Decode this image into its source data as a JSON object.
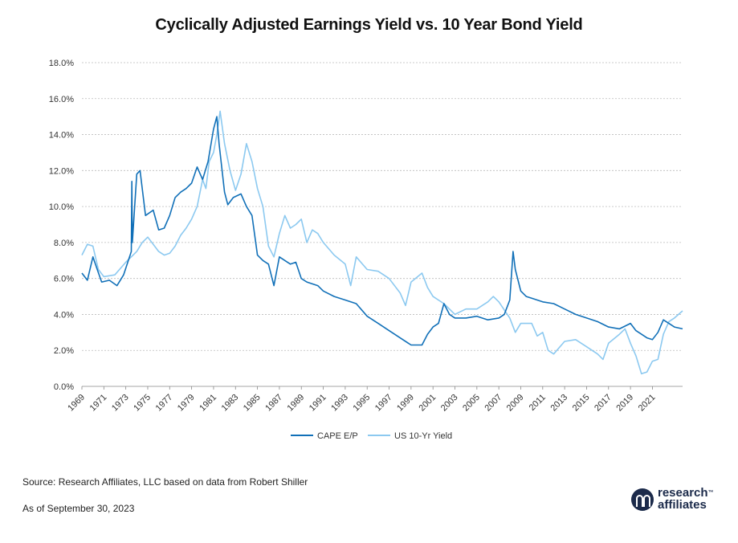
{
  "title": "Cyclically Adjusted Earnings Yield vs. 10 Year Bond Yield",
  "footer": {
    "source": "Source: Research Affiliates, LLC based on data from Robert Shiller",
    "as_of": "As of September 30, 2023"
  },
  "logo": {
    "line1": "research",
    "line2": "affiliates",
    "tm": "™"
  },
  "colors": {
    "cape": "#1170b8",
    "bond": "#8cc9f0",
    "grid": "#bbbbbb"
  },
  "chart_data": {
    "type": "line",
    "title": "Cyclically Adjusted Earnings Yield vs. 10 Year Bond Yield",
    "xlabel": "",
    "ylabel": "",
    "xlim": [
      1969,
      2023.75
    ],
    "ylim": [
      0,
      18
    ],
    "y_ticks": [
      "0.0%",
      "2.0%",
      "4.0%",
      "6.0%",
      "8.0%",
      "10.0%",
      "12.0%",
      "14.0%",
      "16.0%",
      "18.0%"
    ],
    "x_ticks": [
      "1969",
      "1971",
      "1973",
      "1975",
      "1977",
      "1979",
      "1981",
      "1983",
      "1985",
      "1987",
      "1989",
      "1991",
      "1993",
      "1995",
      "1997",
      "1999",
      "2001",
      "2003",
      "2005",
      "2007",
      "2009",
      "2011",
      "2013",
      "2015",
      "2017",
      "2019",
      "2021"
    ],
    "grid": true,
    "legend_position": "bottom-center",
    "series": [
      {
        "name": "CAPE E/P",
        "x": [
          1969,
          1969.5,
          1970,
          1970.4,
          1970.8,
          1971.5,
          1972.2,
          1972.8,
          1973.5,
          1973.55,
          1973.6,
          1974,
          1974.3,
          1974.8,
          1975.5,
          1976,
          1976.5,
          1977,
          1977.5,
          1978,
          1978.5,
          1979,
          1979.5,
          1980,
          1980.5,
          1981,
          1981.3,
          1981.5,
          1982,
          1982.3,
          1982.8,
          1983.5,
          1984,
          1984.5,
          1985,
          1985.5,
          1986,
          1986.5,
          1987,
          1987.5,
          1988,
          1988.5,
          1989,
          1989.5,
          1990,
          1990.5,
          1991,
          1992,
          1993,
          1994,
          1995,
          1996,
          1997,
          1998,
          1999,
          2000,
          2000.5,
          2001,
          2001.5,
          2002,
          2002.5,
          2003,
          2004,
          2005,
          2006,
          2007,
          2007.5,
          2008,
          2008.3,
          2008.5,
          2009,
          2009.5,
          2010,
          2011,
          2012,
          2013,
          2014,
          2015,
          2016,
          2017,
          2018,
          2019,
          2019.5,
          2020,
          2020.5,
          2021,
          2021.5,
          2022,
          2022.5,
          2023,
          2023.75
        ],
        "y": [
          6.3,
          5.9,
          7.2,
          6.5,
          5.8,
          5.9,
          5.6,
          6.2,
          7.5,
          11.4,
          8.0,
          11.8,
          12.0,
          9.5,
          9.8,
          8.7,
          8.8,
          9.5,
          10.5,
          10.8,
          11.0,
          11.3,
          12.2,
          11.5,
          12.5,
          14.3,
          15.0,
          13.5,
          10.8,
          10.1,
          10.5,
          10.7,
          10.0,
          9.5,
          7.3,
          7.0,
          6.8,
          5.6,
          7.2,
          7.0,
          6.8,
          6.9,
          6.0,
          5.8,
          5.7,
          5.6,
          5.3,
          5.0,
          4.8,
          4.6,
          3.9,
          3.5,
          3.1,
          2.7,
          2.3,
          2.3,
          2.9,
          3.3,
          3.5,
          4.6,
          4.0,
          3.8,
          3.8,
          3.9,
          3.7,
          3.8,
          4.0,
          4.8,
          7.5,
          6.5,
          5.3,
          5.0,
          4.9,
          4.7,
          4.6,
          4.3,
          4.0,
          3.8,
          3.6,
          3.3,
          3.2,
          3.5,
          3.1,
          2.9,
          2.7,
          2.6,
          3.0,
          3.7,
          3.5,
          3.3,
          3.2
        ]
      },
      {
        "name": "US 10-Yr Yield",
        "x": [
          1969,
          1969.5,
          1970,
          1970.5,
          1971,
          1972,
          1973,
          1974,
          1974.5,
          1975,
          1975.5,
          1976,
          1976.5,
          1977,
          1977.5,
          1978,
          1978.5,
          1979,
          1979.5,
          1980,
          1980.3,
          1980.6,
          1981,
          1981.3,
          1981.6,
          1982,
          1982.5,
          1983,
          1983.5,
          1984,
          1984.5,
          1985,
          1985.5,
          1986,
          1986.5,
          1987,
          1987.5,
          1988,
          1988.5,
          1989,
          1989.5,
          1990,
          1990.5,
          1991,
          1992,
          1993,
          1993.5,
          1994,
          1995,
          1996,
          1997,
          1998,
          1998.5,
          1999,
          2000,
          2000.5,
          2001,
          2002,
          2003,
          2004,
          2005,
          2006,
          2006.5,
          2007,
          2008,
          2008.5,
          2009,
          2010,
          2010.5,
          2011,
          2011.5,
          2012,
          2013,
          2014,
          2015,
          2016,
          2016.5,
          2017,
          2018,
          2018.5,
          2019,
          2019.5,
          2020,
          2020.5,
          2021,
          2021.5,
          2022,
          2022.5,
          2023,
          2023.75
        ],
        "y": [
          7.3,
          7.9,
          7.8,
          6.5,
          6.1,
          6.2,
          6.9,
          7.5,
          8.0,
          8.3,
          7.9,
          7.5,
          7.3,
          7.4,
          7.8,
          8.4,
          8.8,
          9.3,
          10.0,
          11.5,
          11.0,
          12.5,
          13.0,
          14.0,
          15.3,
          13.5,
          12.0,
          10.9,
          11.8,
          13.5,
          12.5,
          11.0,
          10.0,
          7.8,
          7.2,
          8.5,
          9.5,
          8.8,
          9.0,
          9.3,
          8.0,
          8.7,
          8.5,
          8.0,
          7.3,
          6.8,
          5.6,
          7.2,
          6.5,
          6.4,
          6.0,
          5.2,
          4.5,
          5.8,
          6.3,
          5.5,
          5.0,
          4.6,
          4.0,
          4.3,
          4.3,
          4.7,
          5.0,
          4.7,
          3.8,
          3.0,
          3.5,
          3.5,
          2.8,
          3.0,
          2.0,
          1.8,
          2.5,
          2.6,
          2.2,
          1.8,
          1.5,
          2.4,
          2.9,
          3.2,
          2.4,
          1.7,
          0.7,
          0.8,
          1.4,
          1.5,
          2.9,
          3.6,
          3.8,
          4.2
        ]
      }
    ]
  }
}
